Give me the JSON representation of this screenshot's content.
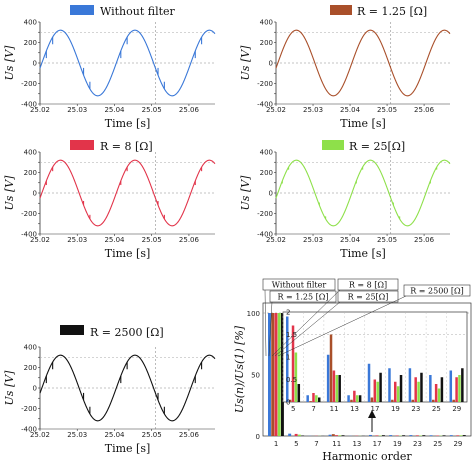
{
  "chart_data": [
    {
      "type": "line",
      "id": "p1",
      "legend": "Without filter",
      "color": "#3a78d8",
      "xlabel": "Time [s]",
      "ylabel": "Us [V]",
      "xticks": [
        "25.02",
        "25.03",
        "25.04",
        "25.05",
        "25.06"
      ],
      "yticks": [
        "-400",
        "-300",
        "-200",
        "-100",
        "0",
        "100",
        "200",
        "300",
        "400"
      ],
      "xlim": [
        25.02,
        25.067
      ],
      "ylim": [
        -400,
        400
      ],
      "amplitude": 320,
      "frequency_hz": 50,
      "notches_per_half_cycle": 2,
      "notch_depth": 70
    },
    {
      "type": "line",
      "id": "p2",
      "legend": "R = 1.25 [Ω]",
      "color": "#a94f2a",
      "xlabel": "Time [s]",
      "ylabel": "Us [V]",
      "xticks": [
        "25.02",
        "25.03",
        "25.04",
        "25.05",
        "25.06"
      ],
      "yticks": [
        "-400",
        "-300",
        "-200",
        "-100",
        "0",
        "100",
        "200",
        "300",
        "400"
      ],
      "xlim": [
        25.02,
        25.067
      ],
      "ylim": [
        -400,
        400
      ],
      "amplitude": 320,
      "frequency_hz": 50,
      "notches_per_half_cycle": 0,
      "notch_depth": 0
    },
    {
      "type": "line",
      "id": "p3",
      "legend": "R = 8 [Ω]",
      "color": "#e2344a",
      "xlabel": "Time [s]",
      "ylabel": "Us [V]",
      "xticks": [
        "25.02",
        "25.03",
        "25.04",
        "25.05",
        "25.06"
      ],
      "yticks": [
        "-400",
        "-300",
        "-200",
        "-100",
        "0",
        "100",
        "200",
        "300",
        "400"
      ],
      "xlim": [
        25.02,
        25.067
      ],
      "ylim": [
        -400,
        400
      ],
      "amplitude": 320,
      "frequency_hz": 50,
      "notches_per_half_cycle": 2,
      "notch_depth": 40
    },
    {
      "type": "line",
      "id": "p4",
      "legend": "R = 25[Ω]",
      "color": "#8ee04a",
      "xlabel": "Time [s]",
      "ylabel": "Us [V]",
      "xticks": [
        "25.02",
        "25.03",
        "25.04",
        "25.05",
        "25.06"
      ],
      "yticks": [
        "-400",
        "-300",
        "-200",
        "-100",
        "0",
        "100",
        "200",
        "300",
        "400"
      ],
      "xlim": [
        25.02,
        25.067
      ],
      "ylim": [
        -400,
        400
      ],
      "amplitude": 320,
      "frequency_hz": 50,
      "notches_per_half_cycle": 2,
      "notch_depth": 25
    },
    {
      "type": "line",
      "id": "p5",
      "legend": "R = 2500 [Ω]",
      "color": "#111111",
      "xlabel": "Time [s]",
      "ylabel": "Us [V]",
      "xticks": [
        "25.02",
        "25.03",
        "25.04",
        "25.05",
        "25.06"
      ],
      "yticks": [
        "-400",
        "-300",
        "-200",
        "-100",
        "0",
        "100",
        "200",
        "300",
        "400"
      ],
      "xlim": [
        25.02,
        25.067
      ],
      "ylim": [
        -400,
        400
      ],
      "amplitude": 320,
      "frequency_hz": 50,
      "notches_per_half_cycle": 2,
      "notch_depth": 70
    },
    {
      "type": "bar",
      "id": "harmonics",
      "xlabel": "Harmonic order",
      "ylabel": "Us(n)/Us(1) [%]",
      "ylim": [
        0,
        100
      ],
      "yticks": [
        "0",
        "50",
        "100"
      ],
      "categories": [
        "1",
        "5",
        "7",
        "11",
        "13",
        "17",
        "19",
        "23",
        "25",
        "29"
      ],
      "legend": [
        "Without filter",
        "R = 1.25 [Ω]",
        "R = 8 [Ω]",
        "R = 25[Ω]",
        "R = 2500 [Ω]"
      ],
      "series": [
        {
          "name": "Without filter",
          "color": "#3a78d8",
          "values": [
            100,
            1.9,
            0.15,
            1.05,
            0.15,
            0.85,
            0.75,
            0.75,
            0.6,
            0.7
          ]
        },
        {
          "name": "R = 1.25 [Ω]",
          "color": "#a94f2a",
          "values": [
            100,
            0.05,
            0.02,
            1.5,
            0.05,
            0.1,
            0.05,
            0.05,
            0.05,
            0.05
          ]
        },
        {
          "name": "R = 8 [Ω]",
          "color": "#e2344a",
          "values": [
            100,
            1.7,
            0.2,
            0.7,
            0.25,
            0.5,
            0.45,
            0.55,
            0.4,
            0.55
          ]
        },
        {
          "name": "R = 25[Ω]",
          "color": "#8ee04a",
          "values": [
            100,
            1.1,
            0.15,
            0.6,
            0.15,
            0.45,
            0.35,
            0.45,
            0.3,
            0.6
          ]
        },
        {
          "name": "R = 2500 [Ω]",
          "color": "#111111",
          "values": [
            100,
            0.4,
            0.1,
            0.6,
            0.15,
            0.65,
            0.6,
            0.65,
            0.55,
            0.75
          ]
        }
      ],
      "inset": {
        "categories": [
          "5",
          "7",
          "11",
          "13",
          "17",
          "19",
          "23",
          "25",
          "29"
        ],
        "ylim": [
          0,
          2
        ],
        "yticks": [
          "0",
          "0.5",
          "1",
          "1.5",
          "2"
        ]
      }
    }
  ]
}
